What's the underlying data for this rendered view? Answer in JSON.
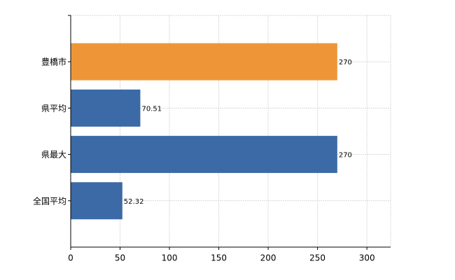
{
  "chart_data": {
    "type": "hbar",
    "categories": [
      "豊橋市",
      "県平均",
      "県最大",
      "全国平均"
    ],
    "values": [
      270,
      70.51,
      270,
      52.32
    ],
    "colors": [
      "#ee9637",
      "#3b6aa6",
      "#3b6aa6",
      "#3b6aa6"
    ],
    "xlim": [
      0,
      324
    ],
    "xticks": [
      0,
      50,
      100,
      150,
      200,
      250,
      300
    ],
    "grid": true
  }
}
